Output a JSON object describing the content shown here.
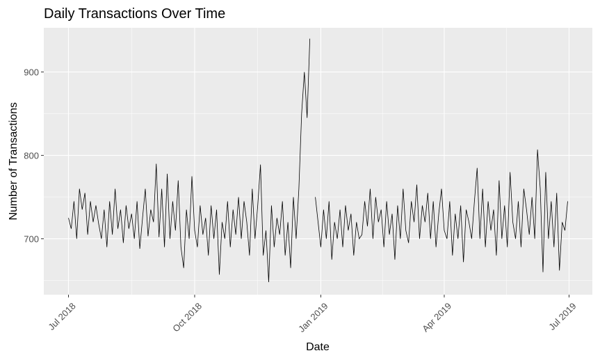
{
  "chart_data": {
    "type": "line",
    "title": "Daily Transactions Over Time",
    "x_label": "Date",
    "y_label": "Number of Transactions",
    "x": [
      0,
      2,
      4,
      6,
      8,
      10,
      12,
      14,
      16,
      18,
      20,
      22,
      24,
      26,
      28,
      30,
      32,
      34,
      36,
      38,
      40,
      42,
      44,
      46,
      48,
      50,
      52,
      54,
      56,
      58,
      60,
      62,
      64,
      66,
      68,
      70,
      72,
      74,
      76,
      78,
      80,
      82,
      84,
      86,
      88,
      90,
      92,
      94,
      96,
      98,
      100,
      102,
      104,
      106,
      108,
      110,
      112,
      114,
      116,
      118,
      120,
      122,
      124,
      126,
      128,
      130,
      132,
      134,
      136,
      138,
      140,
      142,
      144,
      146,
      148,
      150,
      152,
      154,
      156,
      158,
      160,
      162,
      164,
      166,
      168,
      170,
      172,
      174,
      176,
      178,
      180,
      182,
      184,
      186,
      188,
      190,
      192,
      194,
      196,
      198,
      200,
      202,
      204,
      206,
      208,
      210,
      212,
      214,
      216,
      218,
      220,
      222,
      224,
      226,
      228,
      230,
      232,
      234,
      236,
      238,
      240,
      242,
      244,
      246,
      248,
      250,
      252,
      254,
      256,
      258,
      260,
      262,
      264,
      266,
      268,
      270,
      272,
      274,
      276,
      278,
      280,
      282,
      284,
      286,
      288,
      290,
      292,
      294,
      296,
      298,
      300,
      302,
      304,
      306,
      308,
      310,
      312,
      314,
      316,
      318,
      320,
      322,
      324,
      326,
      328,
      330,
      332,
      334,
      336,
      338,
      340,
      342,
      344,
      346,
      348,
      350,
      352,
      354,
      356,
      358,
      360,
      362,
      364
    ],
    "series": [
      {
        "name": "Transactions",
        "color": "#000000",
        "values": [
          725,
          712,
          745,
          700,
          760,
          735,
          755,
          705,
          745,
          720,
          740,
          718,
          700,
          735,
          690,
          745,
          705,
          760,
          712,
          735,
          695,
          740,
          712,
          730,
          700,
          745,
          688,
          725,
          760,
          703,
          735,
          720,
          790,
          702,
          760,
          690,
          778,
          700,
          745,
          710,
          770,
          690,
          665,
          735,
          700,
          775,
          710,
          690,
          740,
          705,
          725,
          680,
          740,
          700,
          735,
          657,
          720,
          700,
          745,
          690,
          735,
          705,
          750,
          700,
          745,
          720,
          680,
          760,
          700,
          740,
          789,
          680,
          710,
          648,
          740,
          690,
          725,
          705,
          745,
          680,
          720,
          665,
          750,
          700,
          760,
          850,
          900,
          845,
          940,
          null,
          750,
          720,
          690,
          735,
          700,
          745,
          675,
          720,
          700,
          735,
          690,
          740,
          710,
          730,
          680,
          720,
          700,
          705,
          745,
          715,
          760,
          700,
          750,
          720,
          735,
          690,
          745,
          705,
          730,
          675,
          740,
          700,
          760,
          710,
          695,
          745,
          720,
          765,
          700,
          740,
          720,
          755,
          700,
          745,
          690,
          730,
          760,
          710,
          700,
          745,
          680,
          730,
          700,
          740,
          672,
          735,
          720,
          700,
          745,
          785,
          700,
          760,
          690,
          745,
          710,
          735,
          680,
          770,
          700,
          740,
          690,
          780,
          720,
          700,
          745,
          690,
          760,
          735,
          705,
          750,
          700,
          807,
          760,
          660,
          780,
          700,
          745,
          690,
          755,
          662,
          720,
          710,
          745
        ]
      }
    ],
    "xlim": [
      -18,
      382
    ],
    "xticks": [
      {
        "value": 0,
        "label": "Jul 2018"
      },
      {
        "value": 92,
        "label": "Oct 2018"
      },
      {
        "value": 184,
        "label": "Jan 2019"
      },
      {
        "value": 274,
        "label": "Apr 2019"
      },
      {
        "value": 365,
        "label": "Jul 2019"
      }
    ],
    "ylim": [
      633,
      953
    ],
    "yticks": [
      700,
      800,
      900
    ],
    "grid": true
  }
}
